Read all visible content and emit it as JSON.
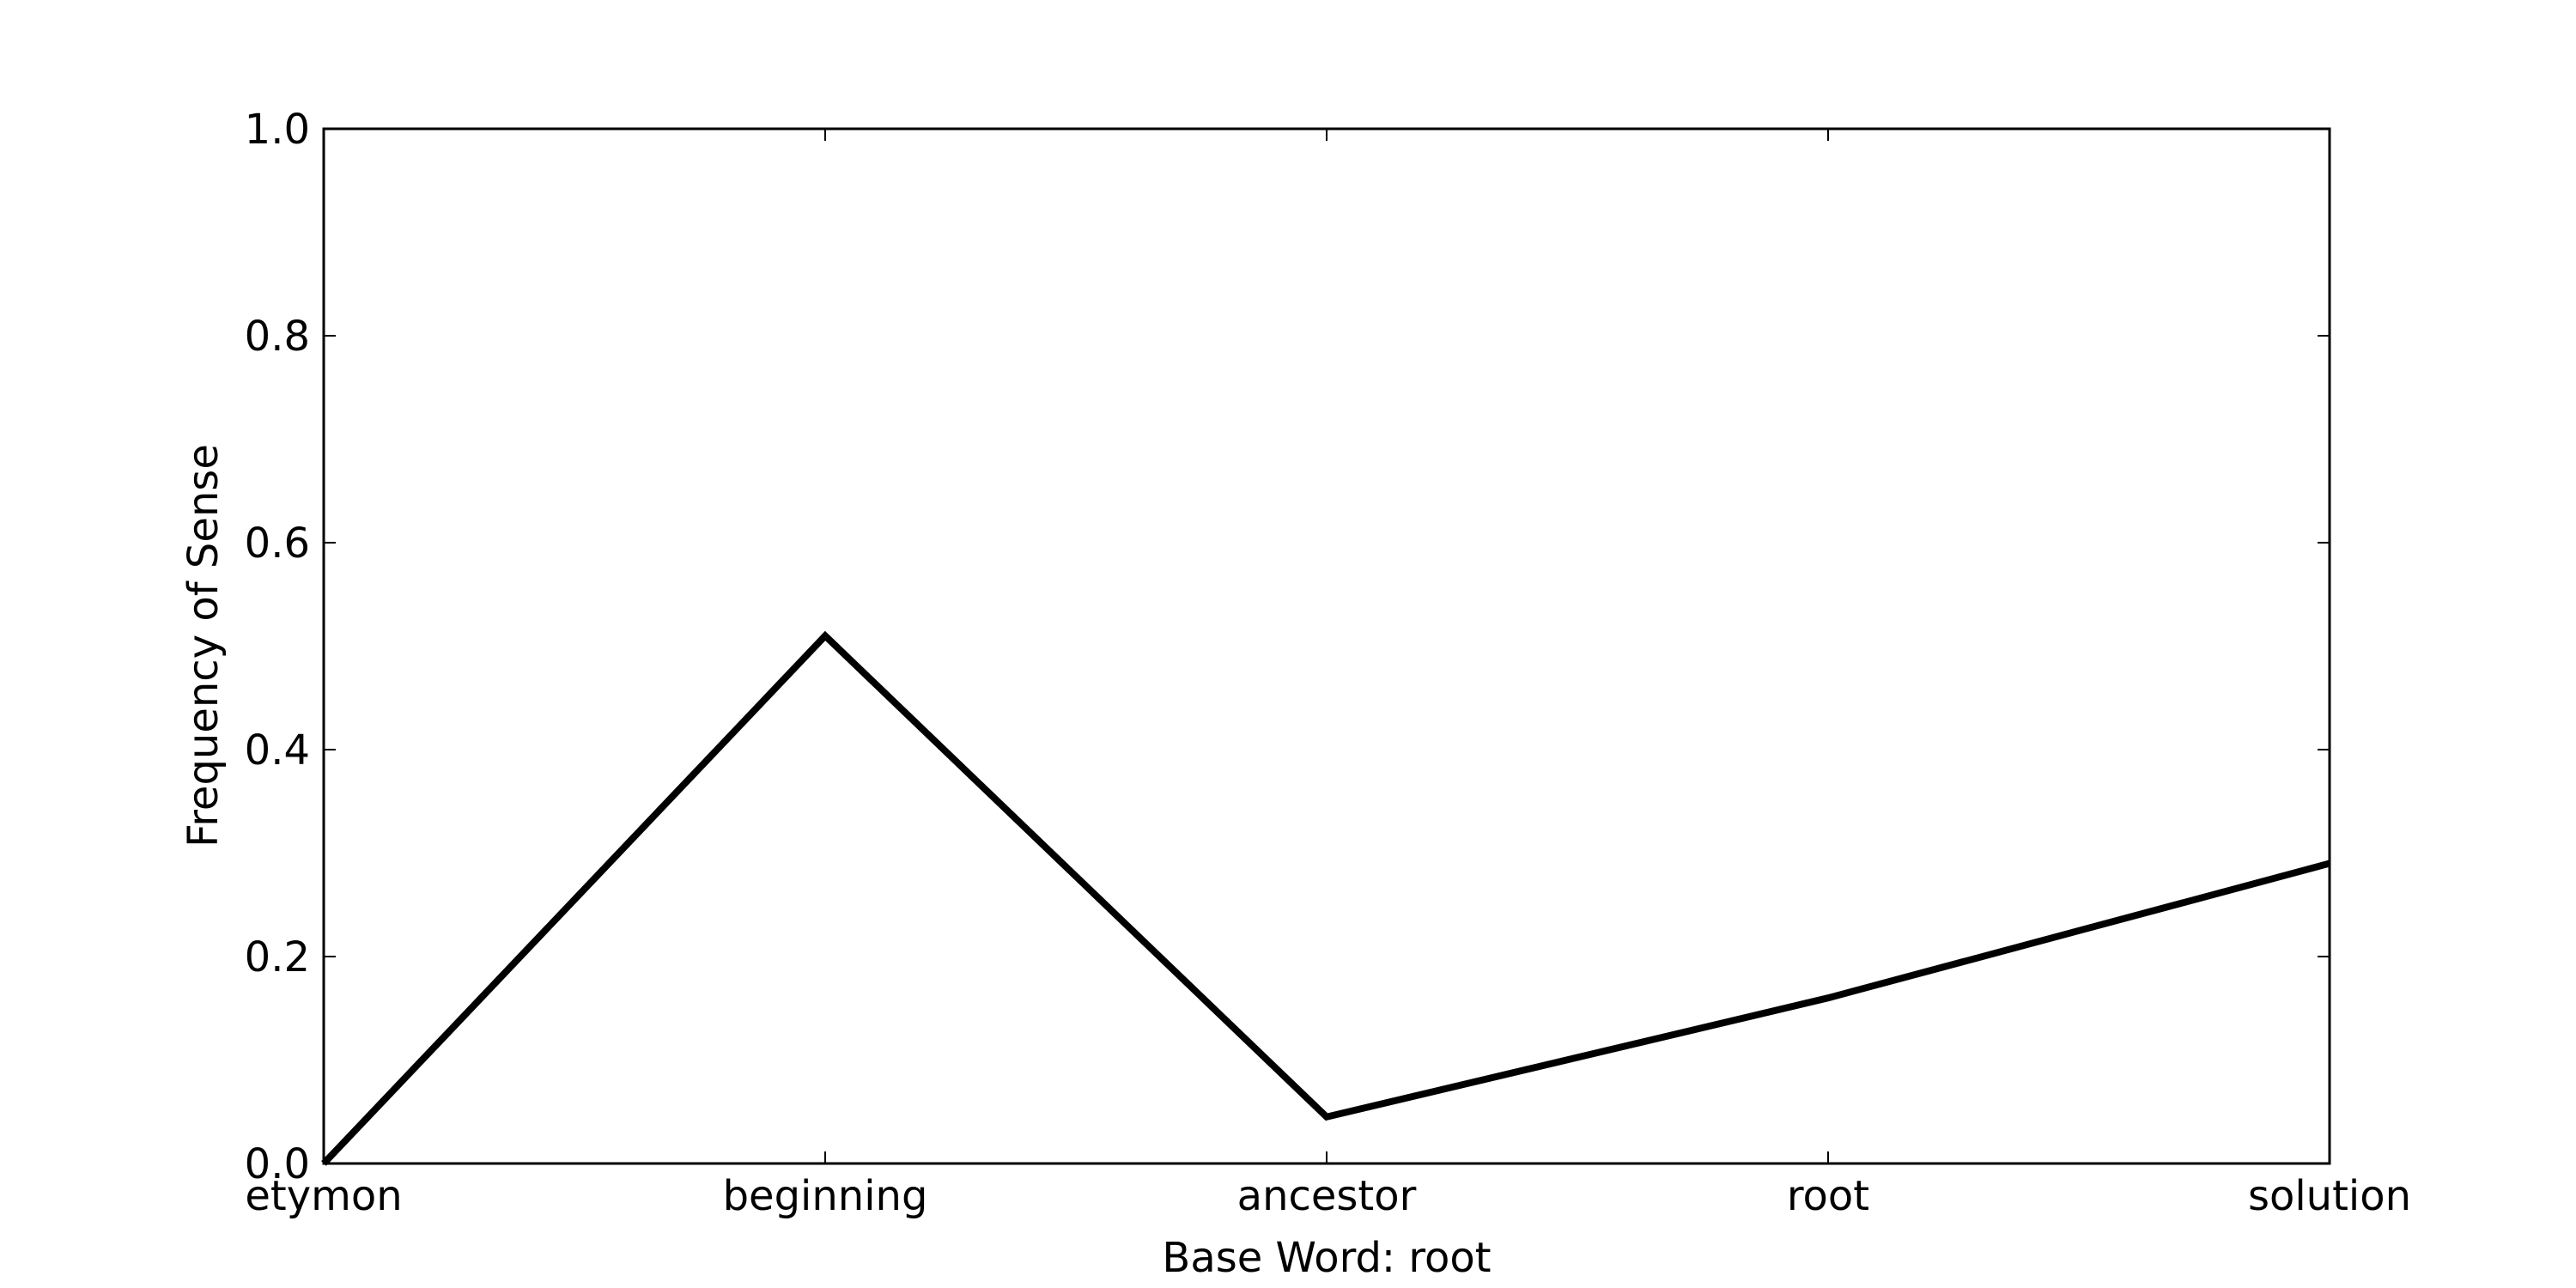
{
  "chart_data": {
    "type": "line",
    "title": "",
    "xlabel": "Base Word: root",
    "ylabel": "Frequency of Sense",
    "categories": [
      "etymon",
      "beginning",
      "ancestor",
      "root",
      "solution"
    ],
    "series": [
      {
        "values": [
          0.0,
          0.51,
          0.045,
          0.16,
          0.29
        ]
      }
    ],
    "ylim": [
      0.0,
      1.0
    ],
    "yticks": [
      "0.0",
      "0.2",
      "0.4",
      "0.6",
      "0.8",
      "1.0"
    ],
    "grid": false,
    "line_color": "#000000"
  }
}
